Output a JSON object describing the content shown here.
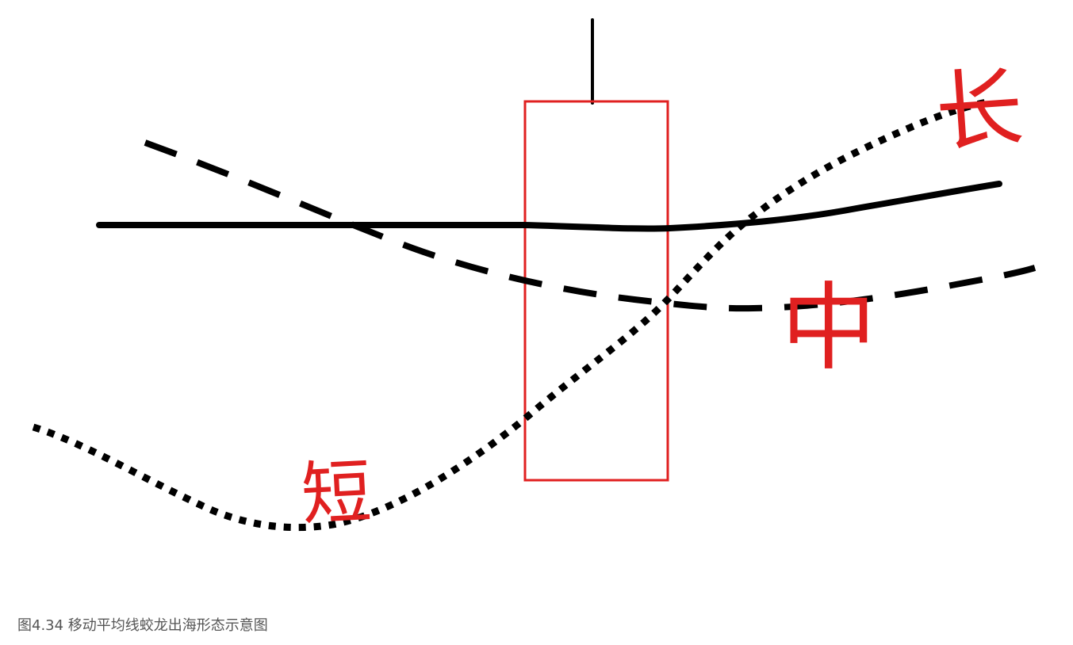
{
  "caption": "图4.34 移动平均线蛟龙出海形态示意图",
  "handwritten_labels": {
    "long": "长",
    "medium": "中",
    "short": "短"
  },
  "colors": {
    "candle": "#e02020",
    "lines": "#000000",
    "annotation": "#e02020",
    "caption": "#555555"
  }
}
